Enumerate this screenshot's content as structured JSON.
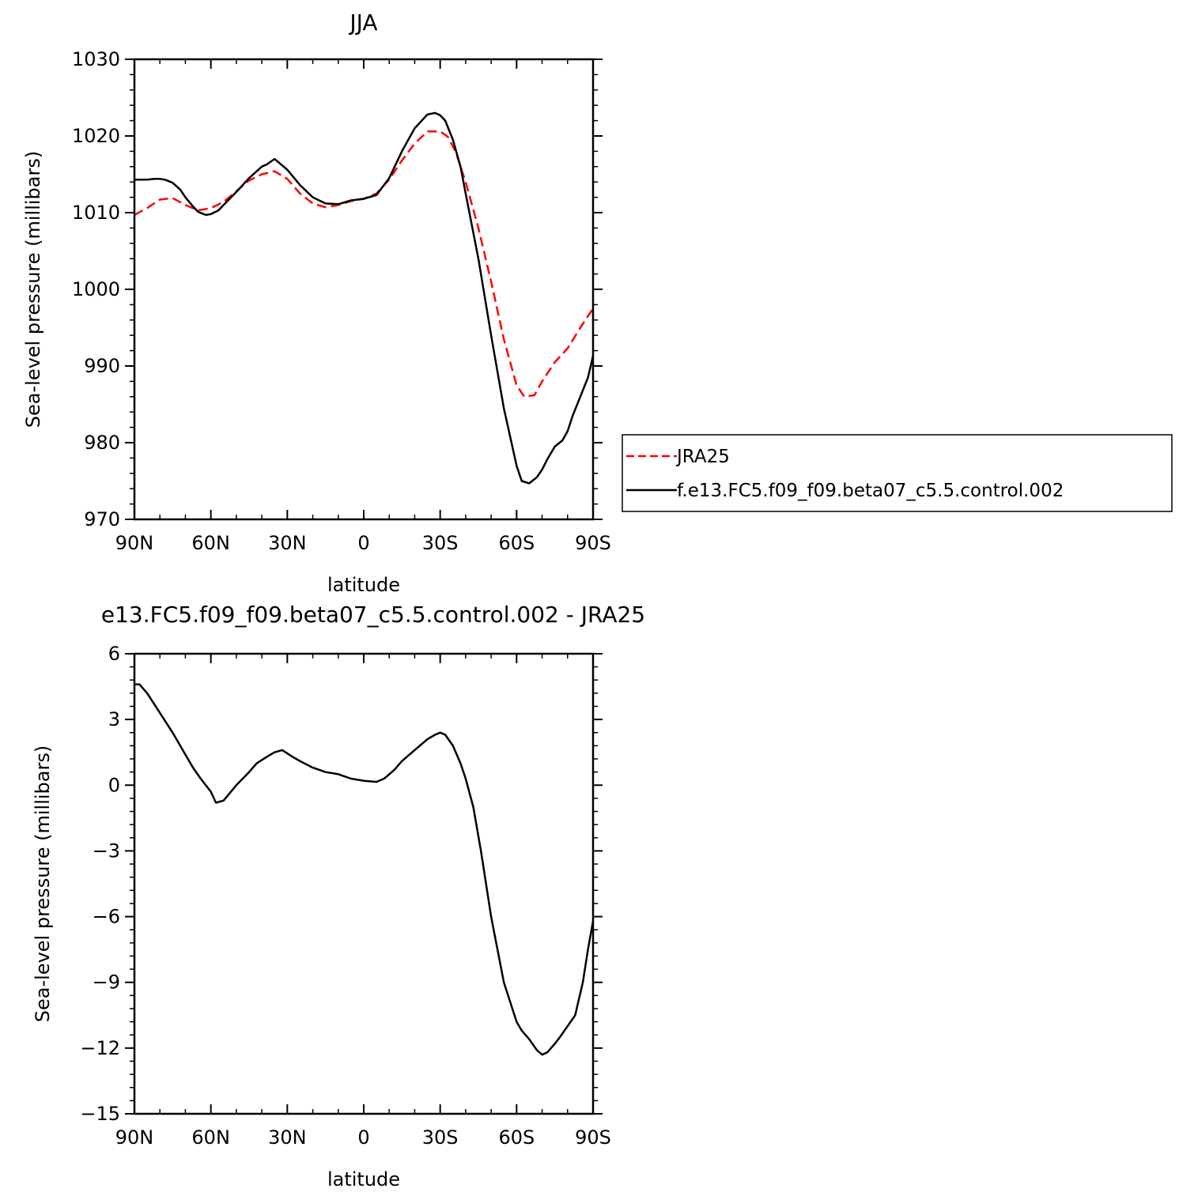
{
  "chart_data": [
    {
      "type": "line",
      "title": "JJA",
      "xlabel": "latitude",
      "ylabel": "Sea-level pressure (millibars)",
      "xlim": [
        90,
        -90
      ],
      "ylim": [
        970,
        1030
      ],
      "xticks": [
        90,
        60,
        30,
        0,
        -30,
        -60,
        -90
      ],
      "xtick_labels": [
        "90N",
        "60N",
        "30N",
        "0",
        "30S",
        "60S",
        "90S"
      ],
      "yticks": [
        970,
        980,
        990,
        1000,
        1010,
        1020,
        1030
      ],
      "ytick_labels": [
        "970",
        "980",
        "990",
        "1000",
        "1010",
        "1020",
        "1030"
      ],
      "legend_position": "right",
      "series": [
        {
          "name": "JRA25",
          "color": "#ff0000",
          "dash": "dashed",
          "x": [
            90,
            85,
            80,
            75,
            70,
            65,
            60,
            55,
            50,
            45,
            40,
            35,
            30,
            25,
            20,
            15,
            10,
            5,
            0,
            -5,
            -10,
            -15,
            -20,
            -25,
            -30,
            -33,
            -36,
            -40,
            -45,
            -50,
            -55,
            -60,
            -63,
            -67,
            -70,
            -75,
            -80,
            -85,
            -90
          ],
          "y": [
            1009.7,
            1010.6,
            1011.7,
            1011.9,
            1011.0,
            1010.3,
            1010.6,
            1011.4,
            1012.8,
            1014.2,
            1015.0,
            1015.4,
            1014.4,
            1012.5,
            1011.2,
            1010.7,
            1011.0,
            1011.5,
            1011.8,
            1012.5,
            1014.3,
            1016.8,
            1019.0,
            1020.6,
            1020.6,
            1019.9,
            1018.0,
            1014.0,
            1008.0,
            1001.0,
            993.5,
            987.5,
            986.0,
            986.2,
            988.0,
            990.5,
            992.3,
            995.0,
            997.5
          ]
        },
        {
          "name": "f.e13.FC5.f09_f09.beta07_c5.5.control.002",
          "color": "#000000",
          "dash": "solid",
          "x": [
            90,
            87,
            85,
            82,
            80,
            78,
            75,
            72,
            70,
            67,
            65,
            62,
            60,
            57,
            55,
            50,
            45,
            40,
            38,
            35,
            30,
            25,
            20,
            15,
            10,
            5,
            0,
            -5,
            -10,
            -15,
            -20,
            -25,
            -28,
            -30,
            -32,
            -35,
            -38,
            -40,
            -45,
            -50,
            -55,
            -60,
            -62,
            -65,
            -68,
            -70,
            -72,
            -75,
            -78,
            -80,
            -82,
            -85,
            -88,
            -90
          ],
          "y": [
            1014.3,
            1014.3,
            1014.3,
            1014.4,
            1014.4,
            1014.3,
            1013.9,
            1013.0,
            1012.0,
            1010.8,
            1010.1,
            1009.7,
            1009.8,
            1010.3,
            1011.0,
            1012.7,
            1014.5,
            1016.0,
            1016.3,
            1017.0,
            1015.6,
            1013.6,
            1012.0,
            1011.2,
            1011.1,
            1011.6,
            1011.8,
            1012.3,
            1014.5,
            1018.0,
            1021.0,
            1022.8,
            1023.0,
            1022.7,
            1022.0,
            1019.5,
            1016.0,
            1012.5,
            1004.0,
            994.0,
            984.5,
            977.0,
            975.0,
            974.7,
            975.5,
            976.5,
            977.8,
            979.5,
            980.3,
            981.5,
            983.5,
            986.0,
            988.5,
            991.3
          ]
        }
      ]
    },
    {
      "type": "line",
      "title": "e13.FC5.f09_f09.beta07_c5.5.control.002 - JRA25",
      "xlabel": "latitude",
      "ylabel": "Sea-level pressure (millibars)",
      "xlim": [
        90,
        -90
      ],
      "ylim": [
        -15,
        6
      ],
      "xticks": [
        90,
        60,
        30,
        0,
        -30,
        -60,
        -90
      ],
      "xtick_labels": [
        "90N",
        "60N",
        "30N",
        "0",
        "30S",
        "60S",
        "90S"
      ],
      "yticks": [
        -15,
        -12,
        -9,
        -6,
        -3,
        0,
        3,
        6
      ],
      "ytick_labels": [
        "−15",
        "−12",
        "−9",
        "−6",
        "−3",
        "0",
        "3",
        "6"
      ],
      "series": [
        {
          "color": "#000000",
          "dash": "solid",
          "x": [
            90,
            88,
            85,
            80,
            75,
            70,
            67,
            64,
            60,
            58,
            55,
            50,
            45,
            42,
            38,
            35,
            32,
            28,
            25,
            20,
            15,
            10,
            5,
            0,
            -5,
            -8,
            -12,
            -15,
            -20,
            -25,
            -28,
            -30,
            -32,
            -35,
            -38,
            -40,
            -43,
            -46,
            -50,
            -55,
            -60,
            -62,
            -65,
            -68,
            -70,
            -72,
            -75,
            -77,
            -80,
            -83,
            -86,
            -88,
            -90
          ],
          "y": [
            4.6,
            4.6,
            4.2,
            3.3,
            2.4,
            1.4,
            0.8,
            0.3,
            -0.3,
            -0.8,
            -0.7,
            0.0,
            0.6,
            1.0,
            1.3,
            1.5,
            1.6,
            1.3,
            1.1,
            0.8,
            0.6,
            0.5,
            0.3,
            0.2,
            0.15,
            0.3,
            0.7,
            1.1,
            1.6,
            2.1,
            2.3,
            2.4,
            2.3,
            1.8,
            1.0,
            0.3,
            -1.0,
            -3.0,
            -6.0,
            -9.0,
            -10.8,
            -11.2,
            -11.6,
            -12.1,
            -12.3,
            -12.2,
            -11.8,
            -11.5,
            -11.0,
            -10.5,
            -9.0,
            -7.5,
            -6.2
          ]
        }
      ]
    }
  ]
}
